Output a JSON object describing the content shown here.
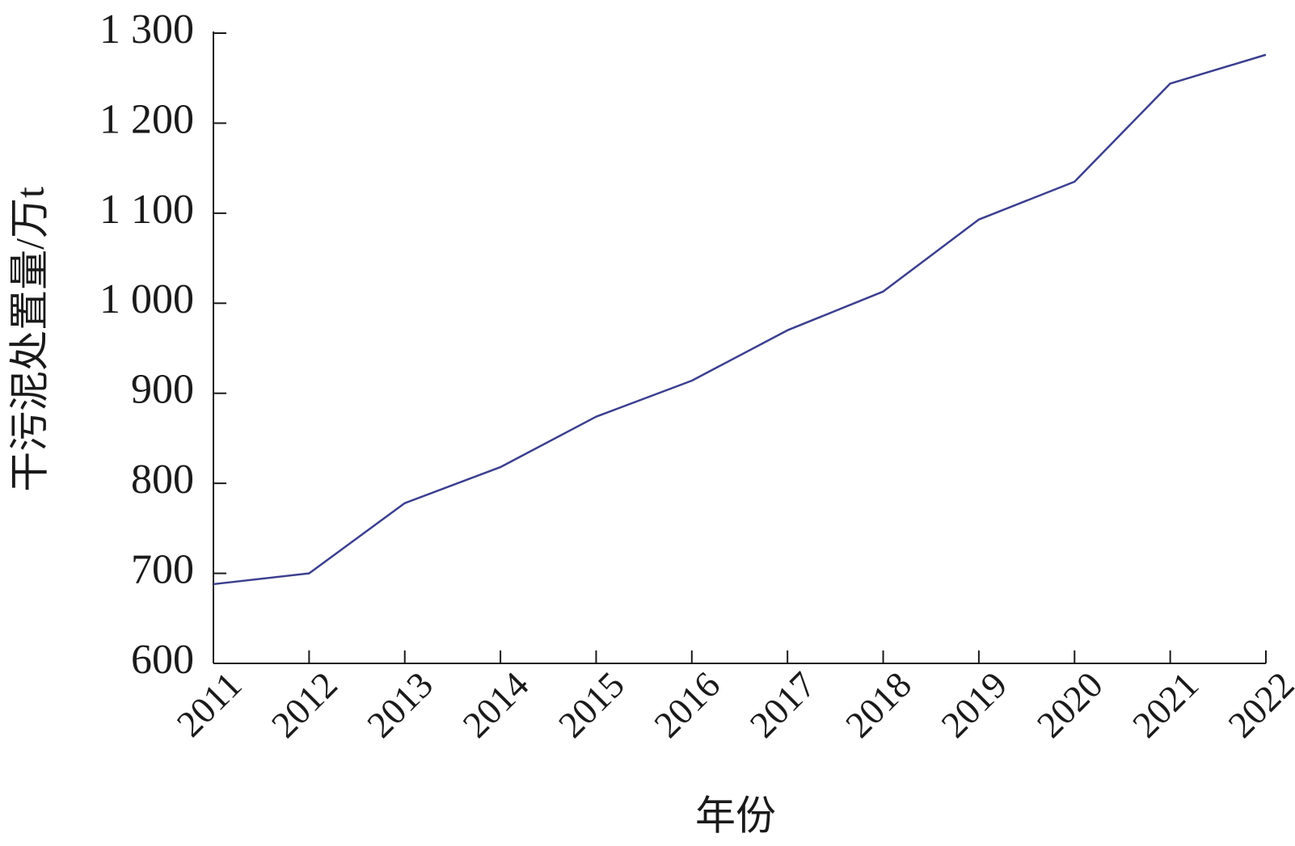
{
  "chart_data": {
    "type": "line",
    "x_label": "年份",
    "y_label": "干污泥处置量/万t",
    "categories": [
      "2011",
      "2012",
      "2013",
      "2014",
      "2015",
      "2016",
      "2017",
      "2018",
      "2019",
      "2020",
      "2021",
      "2022"
    ],
    "series": [
      {
        "color": "#3b3f8f",
        "values": [
          688,
          700,
          778,
          818,
          874,
          914,
          970,
          1013,
          1093,
          1135,
          1244,
          1276
        ]
      }
    ],
    "ylim": [
      600,
      1300
    ],
    "yticks": [
      600,
      700,
      800,
      900,
      {
        "value": 1000,
        "label": "1 000"
      },
      {
        "value": 1100,
        "label": "1 100"
      },
      {
        "value": 1200,
        "label": "1 200"
      },
      {
        "value": 1300,
        "label": "1 300"
      }
    ]
  }
}
